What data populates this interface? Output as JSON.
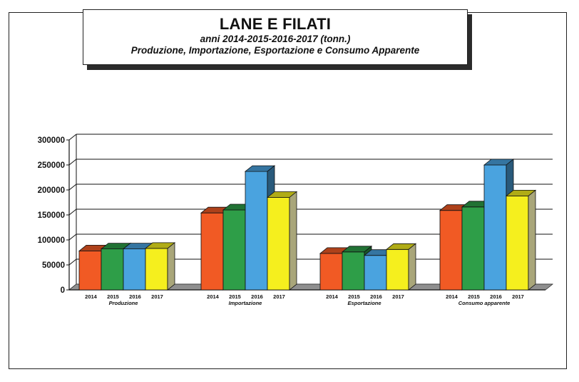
{
  "header": {
    "title": "LANE E FILATI",
    "subtitle_line1": "anni 2014-2015-2016-2017 (tonn.)",
    "subtitle_line2": "Produzione, Importazione, Esportazione e Consumo Apparente"
  },
  "colors": {
    "2014": "#f15a24",
    "2015": "#2e9e48",
    "2016": "#4aa3df",
    "2017": "#f5ef1e",
    "floor": "#8f8f8f"
  },
  "chart_data": {
    "type": "bar",
    "title": "LANE E FILATI",
    "categories": [
      "Produzione",
      "Importazione",
      "Esportazione",
      "Consumo apparente"
    ],
    "series": [
      {
        "name": "2014",
        "values": [
          78000,
          154000,
          73000,
          159000
        ]
      },
      {
        "name": "2015",
        "values": [
          82000,
          160000,
          76000,
          166000
        ]
      },
      {
        "name": "2016",
        "values": [
          82000,
          237000,
          69000,
          250000
        ]
      },
      {
        "name": "2017",
        "values": [
          83000,
          185000,
          81000,
          188000
        ]
      }
    ],
    "ylim": [
      0,
      300000
    ],
    "yticks": [
      "0",
      "50000",
      "100000",
      "150000",
      "200000",
      "250000",
      "300000"
    ],
    "xlabel": "",
    "ylabel": "",
    "grid": true
  }
}
